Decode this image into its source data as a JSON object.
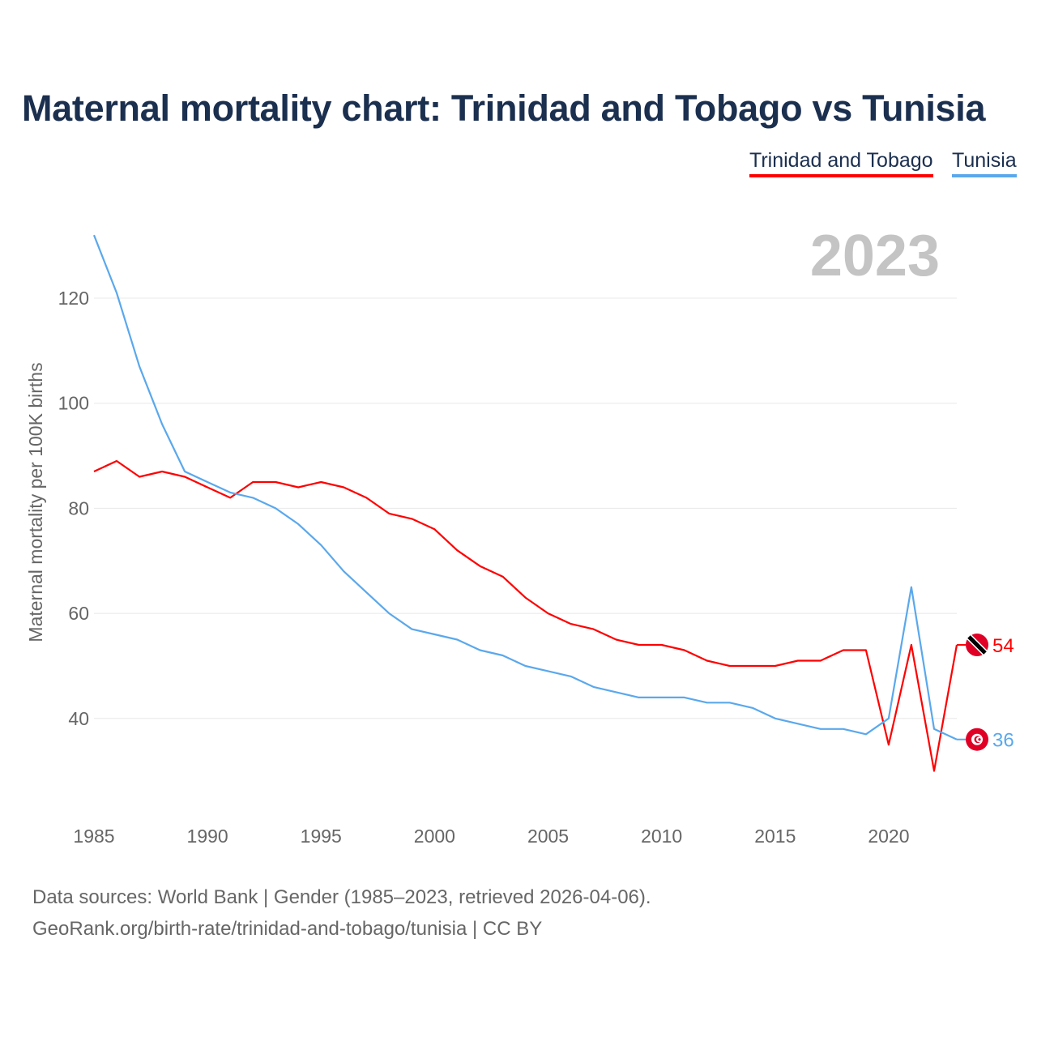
{
  "title": "Maternal mortality chart: Trinidad and Tobago vs Tunisia",
  "year_label": "2023",
  "source_lines": [
    "Data sources: World Bank | Gender (1985–2023, retrieved 2026-04-06).",
    "GeoRank.org/birth-rate/trinidad-and-tobago/tunisia | CC BY"
  ],
  "chart_data": {
    "type": "line",
    "title": "Maternal mortality chart: Trinidad and Tobago vs Tunisia",
    "xlabel": "",
    "ylabel": "Maternal mortality per 100K births",
    "xlim": [
      1985,
      2023
    ],
    "ylim": [
      22,
      136
    ],
    "xticks": [
      1985,
      1990,
      1995,
      2000,
      2005,
      2010,
      2015,
      2020
    ],
    "yticks": [
      40,
      60,
      80,
      100,
      120
    ],
    "grid": true,
    "legend_position": "top-right",
    "x": [
      1985,
      1986,
      1987,
      1988,
      1989,
      1990,
      1991,
      1992,
      1993,
      1994,
      1995,
      1996,
      1997,
      1998,
      1999,
      2000,
      2001,
      2002,
      2003,
      2004,
      2005,
      2006,
      2007,
      2008,
      2009,
      2010,
      2011,
      2012,
      2013,
      2014,
      2015,
      2016,
      2017,
      2018,
      2019,
      2020,
      2021,
      2022,
      2023
    ],
    "series": [
      {
        "name": "Trinidad and Tobago",
        "color": "#ff0000",
        "end_label": "54",
        "values": [
          87,
          89,
          86,
          87,
          86,
          84,
          82,
          85,
          85,
          84,
          85,
          84,
          82,
          79,
          78,
          76,
          72,
          69,
          67,
          63,
          60,
          58,
          57,
          55,
          54,
          54,
          53,
          51,
          50,
          50,
          50,
          51,
          51,
          53,
          53,
          35,
          54,
          30,
          54
        ]
      },
      {
        "name": "Tunisia",
        "color": "#5aa8ec",
        "end_label": "36",
        "values": [
          132,
          121,
          107,
          96,
          87,
          85,
          83,
          82,
          80,
          77,
          73,
          68,
          64,
          60,
          57,
          56,
          55,
          53,
          52,
          50,
          49,
          48,
          46,
          45,
          44,
          44,
          44,
          43,
          43,
          42,
          40,
          39,
          38,
          38,
          37,
          40,
          65,
          38,
          36
        ]
      }
    ]
  }
}
